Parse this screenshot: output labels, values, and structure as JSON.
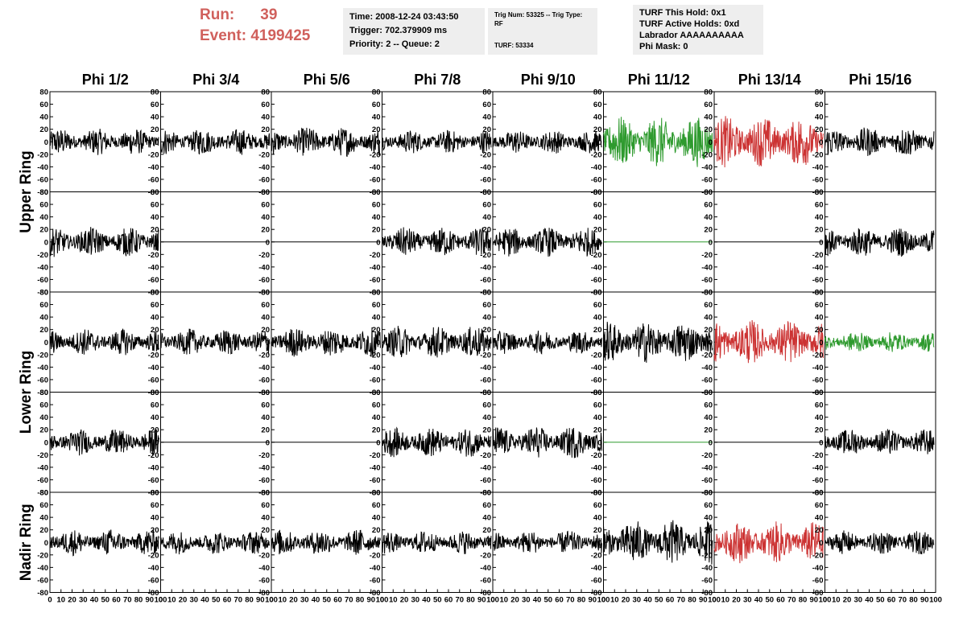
{
  "header": {
    "run_label": "Run:",
    "run_value": "39",
    "event_label": "Event:",
    "event_value": "4199425",
    "time": "Time: 2008-12-24 03:43:50",
    "trigger": "Trigger: 702.379909 ms",
    "priority": "Priority: 2 -- Queue: 2",
    "trig_num": "Trig Num: 53325 -- Trig Type: RF",
    "turf": "TURF: 53334",
    "turf_hold": "TURF This Hold: 0x1",
    "turf_active": "TURF Active Holds: 0xd",
    "labrador": "Labrador AAAAAAAAAA",
    "phi_mask": "Phi Mask: 0"
  },
  "colors": {
    "default": "#000000",
    "green": "#2e9a2e",
    "red": "#cc3333"
  },
  "chart_data": {
    "type": "line",
    "columns": [
      "Phi 1/2",
      "Phi 3/4",
      "Phi 5/6",
      "Phi 7/8",
      "Phi 9/10",
      "Phi 11/12",
      "Phi 13/14",
      "Phi 15/16"
    ],
    "ring_labels": [
      "Upper Ring",
      "Lower Ring",
      "Nadir Ring"
    ],
    "row_ring": [
      0,
      0,
      1,
      1,
      2
    ],
    "xlim": [
      0,
      100
    ],
    "ylim": [
      -80,
      80
    ],
    "x_tick_labels": [
      "0",
      "10",
      "20",
      "30",
      "40",
      "50",
      "60",
      "70",
      "80",
      "90",
      "100"
    ],
    "y_tick_labels": [
      "80",
      "60",
      "40",
      "20",
      "0",
      "-20",
      "-40",
      "-60",
      "-80"
    ],
    "panels": [
      [
        {
          "a": 18,
          "c": "default"
        },
        {
          "a": 18,
          "c": "default"
        },
        {
          "a": 20,
          "c": "default"
        },
        {
          "a": 16,
          "c": "default"
        },
        {
          "a": 16,
          "c": "default"
        },
        {
          "a": 34,
          "c": "green"
        },
        {
          "a": 35,
          "c": "red"
        },
        {
          "a": 20,
          "c": "default"
        }
      ],
      [
        {
          "a": 20,
          "c": "default"
        },
        {
          "a": 0,
          "c": "default"
        },
        {
          "a": 0,
          "c": "default"
        },
        {
          "a": 20,
          "c": "default"
        },
        {
          "a": 20,
          "c": "default"
        },
        {
          "a": 0,
          "c": "green"
        },
        {
          "a": 0,
          "c": "default"
        },
        {
          "a": 20,
          "c": "default"
        }
      ],
      [
        {
          "a": 18,
          "c": "default"
        },
        {
          "a": 18,
          "c": "default"
        },
        {
          "a": 20,
          "c": "default"
        },
        {
          "a": 22,
          "c": "default"
        },
        {
          "a": 16,
          "c": "default"
        },
        {
          "a": 28,
          "c": "default"
        },
        {
          "a": 30,
          "c": "red"
        },
        {
          "a": 14,
          "c": "green"
        }
      ],
      [
        {
          "a": 18,
          "c": "default"
        },
        {
          "a": 0,
          "c": "default"
        },
        {
          "a": 0,
          "c": "default"
        },
        {
          "a": 20,
          "c": "default"
        },
        {
          "a": 22,
          "c": "default"
        },
        {
          "a": 0,
          "c": "green"
        },
        {
          "a": 0,
          "c": "default"
        },
        {
          "a": 18,
          "c": "default"
        }
      ],
      [
        {
          "a": 18,
          "c": "default"
        },
        {
          "a": 16,
          "c": "default"
        },
        {
          "a": 18,
          "c": "default"
        },
        {
          "a": 16,
          "c": "default"
        },
        {
          "a": 16,
          "c": "default"
        },
        {
          "a": 30,
          "c": "default"
        },
        {
          "a": 28,
          "c": "red"
        },
        {
          "a": 16,
          "c": "default"
        }
      ]
    ]
  }
}
